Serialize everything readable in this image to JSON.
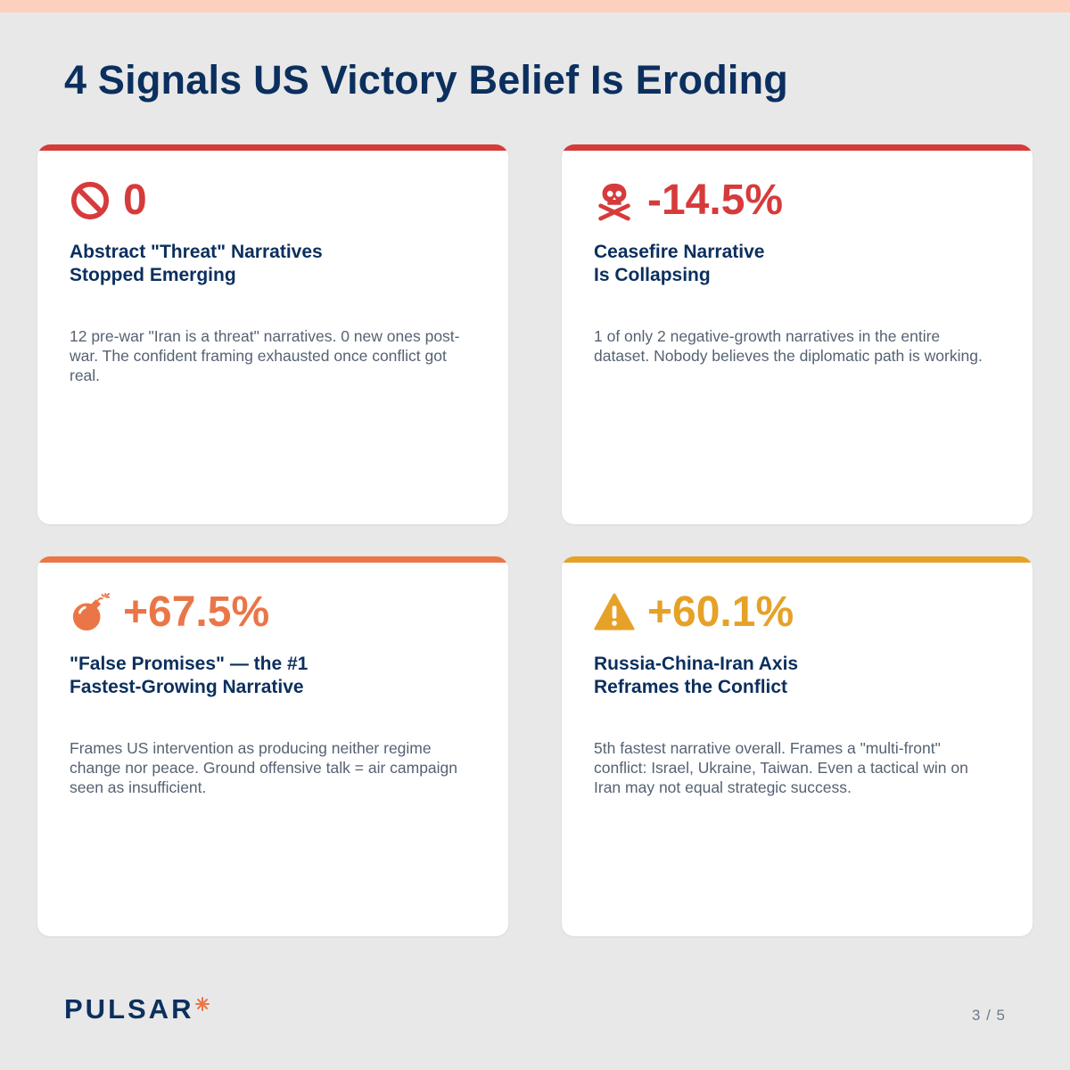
{
  "page_title": "4 Signals US Victory Belief Is Eroding",
  "colors": {
    "navy": "#0b2f5e",
    "red": "#d63b3b",
    "orange": "#ea7647",
    "amber": "#e6a128",
    "body_text": "#566273",
    "background": "#e8e8e8",
    "top_bar": "#fcd0bd"
  },
  "cards": [
    {
      "icon": "prohibited-icon",
      "stat": "0",
      "heading": [
        "Abstract \"Threat\" Narratives",
        "Stopped Emerging"
      ],
      "body": "12 pre-war \"Iran is a threat\" narratives. 0 new ones post-war. The confident framing exhausted once conflict got real.",
      "accent_color": "#d63b3b"
    },
    {
      "icon": "skull-crossbones-icon",
      "stat": "-14.5%",
      "heading": [
        "Ceasefire Narrative",
        "Is Collapsing"
      ],
      "body": "1 of only 2 negative-growth narratives in the entire dataset. Nobody believes the diplomatic path is working.",
      "accent_color": "#d63b3b"
    },
    {
      "icon": "bomb-icon",
      "stat": "+67.5%",
      "heading": [
        "\"False Promises\" — the #1",
        "Fastest-Growing Narrative"
      ],
      "body": "Frames US intervention as producing neither regime change nor peace. Ground offensive talk = air campaign seen as insufficient.",
      "accent_color": "#ea7647"
    },
    {
      "icon": "warning-icon",
      "stat": "+60.1%",
      "heading": [
        "Russia-China-Iran Axis",
        "Reframes the Conflict"
      ],
      "body": "5th fastest narrative overall. Frames a \"multi-front\" conflict: Israel, Ukraine, Taiwan. Even a tactical win on Iran may not equal strategic success.",
      "accent_color": "#e6a128"
    }
  ],
  "footer": {
    "brand": "PULSAR",
    "brand_icon": "starburst-icon",
    "page_counter": "3 / 5"
  }
}
